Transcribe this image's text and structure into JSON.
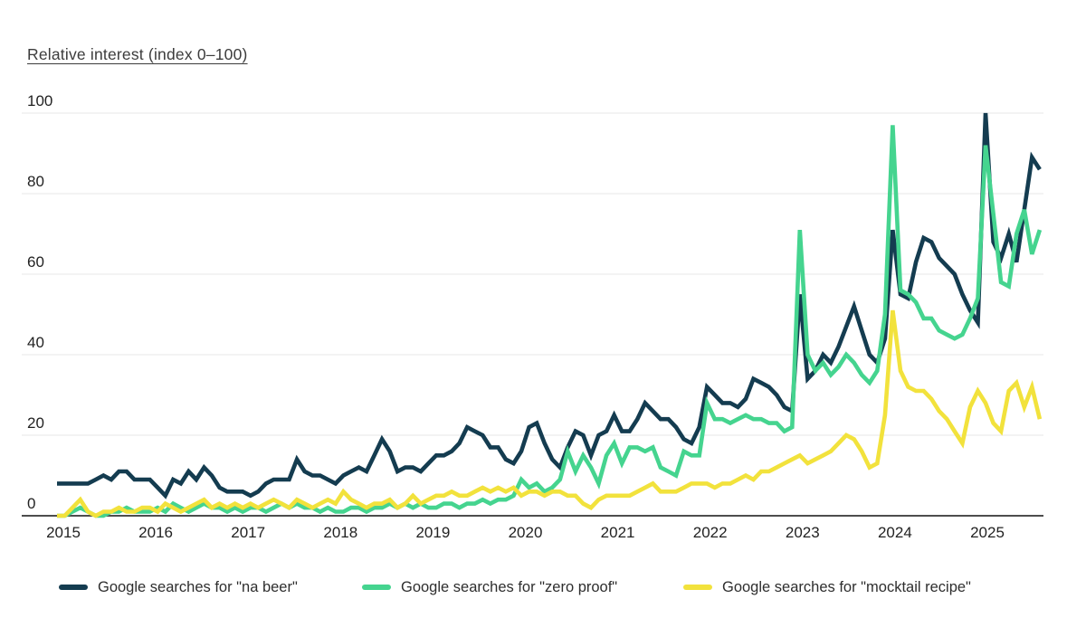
{
  "title": "Relative interest (index 0–100)",
  "y_axis": {
    "ticks": [
      100,
      80,
      60,
      40,
      20,
      0
    ]
  },
  "x_axis": {
    "ticks": [
      "2015",
      "2016",
      "2017",
      "2018",
      "2019",
      "2020",
      "2021",
      "2022",
      "2023",
      "2024",
      "2025"
    ]
  },
  "colors": {
    "na_beer": "#143C50",
    "zero_proof": "#45D48F",
    "mocktail_recipe": "#F2E23C",
    "gridline": "#E7E7E7",
    "axis_line": "#4D4D4D",
    "tick_text": "#222222",
    "title_text": "#3C3C3C"
  },
  "chart_data": {
    "type": "line",
    "title": "Relative interest (index 0–100)",
    "ylabel": "Relative interest (index 0–100)",
    "ylim": [
      0,
      100
    ],
    "y_ticks": [
      0,
      20,
      40,
      60,
      80,
      100
    ],
    "grid": "horizontal",
    "legend_position": "bottom",
    "x_unit": "month",
    "x_start": "2015-01",
    "x_end": "2025-08",
    "x_tick_labels": [
      "2015",
      "2016",
      "2017",
      "2018",
      "2019",
      "2020",
      "2021",
      "2022",
      "2023",
      "2024",
      "2025"
    ],
    "series": [
      {
        "id": "na-beer",
        "name": "Google searches for \"na beer\"",
        "color": "#143C50",
        "values": [
          8,
          8,
          8,
          8,
          8,
          9,
          10,
          9,
          11,
          11,
          9,
          9,
          9,
          7,
          5,
          9,
          8,
          11,
          9,
          12,
          10,
          7,
          6,
          6,
          6,
          5,
          6,
          8,
          9,
          9,
          9,
          14,
          11,
          10,
          10,
          9,
          8,
          10,
          11,
          12,
          11,
          15,
          19,
          16,
          11,
          12,
          12,
          11,
          13,
          15,
          15,
          16,
          18,
          22,
          21,
          20,
          17,
          17,
          14,
          13,
          16,
          22,
          23,
          18,
          14,
          12,
          17,
          21,
          20,
          15,
          20,
          21,
          25,
          21,
          21,
          24,
          28,
          26,
          24,
          24,
          22,
          19,
          18,
          22,
          32,
          30,
          28,
          28,
          27,
          29,
          34,
          33,
          32,
          30,
          27,
          26,
          55,
          34,
          36,
          40,
          38,
          42,
          47,
          52,
          46,
          40,
          38,
          44,
          71,
          55,
          54,
          63,
          69,
          68,
          64,
          62,
          60,
          55,
          51,
          48,
          100,
          68,
          64,
          70,
          63,
          76,
          89,
          86
        ]
      },
      {
        "id": "zero-proof",
        "name": "Google searches for \"zero proof\"",
        "color": "#45D48F",
        "values": [
          0,
          0,
          1,
          2,
          1,
          0,
          0,
          1,
          1,
          2,
          1,
          1,
          1,
          2,
          1,
          3,
          2,
          1,
          2,
          3,
          2,
          2,
          1,
          2,
          1,
          2,
          2,
          1,
          2,
          3,
          2,
          3,
          2,
          2,
          1,
          2,
          1,
          1,
          2,
          2,
          1,
          2,
          2,
          3,
          2,
          3,
          2,
          3,
          2,
          2,
          3,
          3,
          2,
          3,
          3,
          4,
          3,
          4,
          4,
          5,
          9,
          7,
          8,
          6,
          7,
          9,
          16,
          11,
          15,
          12,
          8,
          15,
          18,
          13,
          17,
          17,
          16,
          17,
          12,
          11,
          10,
          16,
          15,
          15,
          28,
          24,
          24,
          23,
          24,
          25,
          24,
          24,
          23,
          23,
          21,
          22,
          71,
          40,
          36,
          38,
          35,
          37,
          40,
          38,
          35,
          33,
          36,
          50,
          97,
          56,
          55,
          53,
          49,
          49,
          46,
          45,
          44,
          45,
          49,
          54,
          92,
          75,
          58,
          57,
          70,
          76,
          65,
          71
        ]
      },
      {
        "id": "mocktail-recipe",
        "name": "Google searches for \"mocktail recipe\"",
        "color": "#F2E23C",
        "values": [
          0,
          0,
          2,
          4,
          1,
          0,
          1,
          1,
          2,
          1,
          1,
          2,
          2,
          1,
          3,
          2,
          1,
          2,
          3,
          4,
          2,
          3,
          2,
          3,
          2,
          3,
          2,
          3,
          4,
          3,
          2,
          4,
          3,
          2,
          3,
          4,
          3,
          6,
          4,
          3,
          2,
          3,
          3,
          4,
          2,
          3,
          5,
          3,
          4,
          5,
          5,
          6,
          5,
          5,
          6,
          7,
          6,
          7,
          6,
          7,
          5,
          6,
          6,
          5,
          6,
          6,
          5,
          5,
          3,
          2,
          4,
          5,
          5,
          5,
          5,
          6,
          7,
          8,
          6,
          6,
          6,
          7,
          8,
          8,
          8,
          7,
          8,
          8,
          9,
          10,
          9,
          11,
          11,
          12,
          13,
          14,
          15,
          13,
          14,
          15,
          16,
          18,
          20,
          19,
          16,
          12,
          13,
          25,
          51,
          36,
          32,
          31,
          31,
          29,
          26,
          24,
          21,
          18,
          27,
          31,
          28,
          23,
          21,
          31,
          33,
          27,
          32,
          24
        ]
      }
    ]
  }
}
